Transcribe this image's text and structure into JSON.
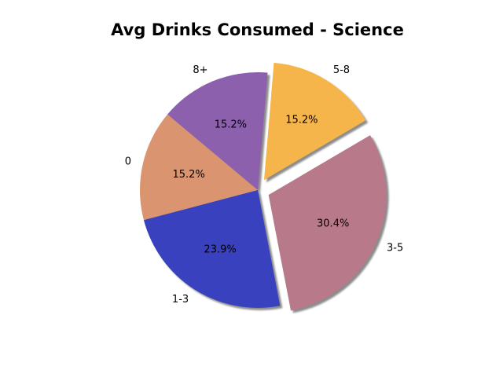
{
  "chart_data": {
    "type": "pie",
    "title": "Avg Drinks Consumed - Science",
    "labels": [
      "0",
      "1-3",
      "3-5",
      "5-8",
      "8+"
    ],
    "values": [
      15.2,
      23.9,
      30.4,
      15.2,
      15.2
    ],
    "percent_labels": [
      "15.2%",
      "23.9%",
      "30.4%",
      "15.2%",
      "15.2%"
    ],
    "colors": [
      "#DA9570",
      "#3A41BF",
      "#B8798B",
      "#F5B54B",
      "#8C60AC"
    ],
    "exploded": [
      "3-5",
      "5-8"
    ],
    "shadow": true
  }
}
